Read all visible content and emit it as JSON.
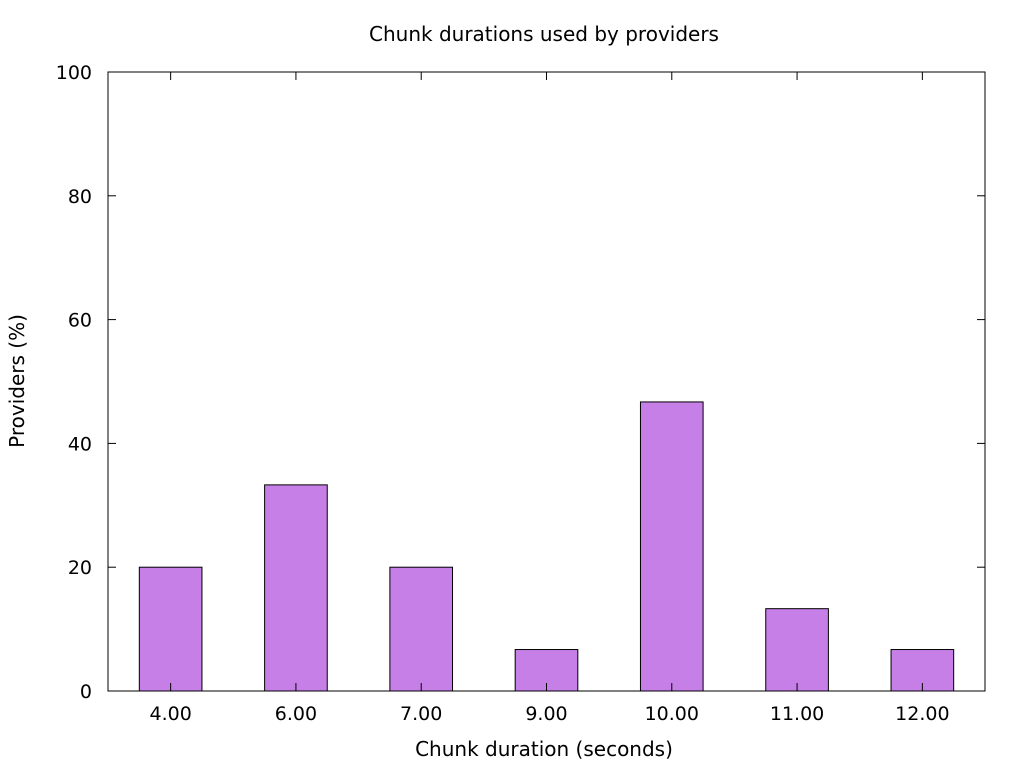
{
  "chart_data": {
    "type": "bar",
    "title": "Chunk durations used by providers",
    "xlabel": "Chunk duration (seconds)",
    "ylabel": "Providers (%)",
    "categories": [
      "4.00",
      "6.00",
      "7.00",
      "9.00",
      "10.00",
      "11.00",
      "12.00"
    ],
    "values": [
      20.0,
      33.3,
      20.0,
      6.7,
      46.7,
      13.3,
      6.7
    ],
    "ylim": [
      0,
      100
    ],
    "yticks": [
      0,
      20,
      40,
      60,
      80,
      100
    ],
    "grid": false,
    "legend": false,
    "bar_color": "#c77fe8",
    "bar_edge_color": "#000000"
  }
}
